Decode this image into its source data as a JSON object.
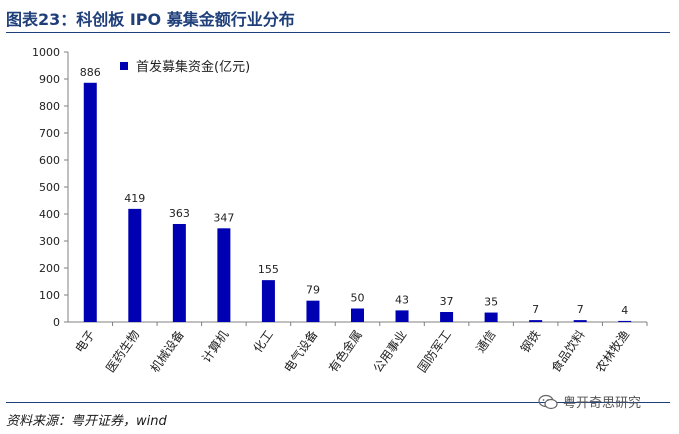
{
  "header": {
    "title": "图表23：科创板 IPO 募集金额行业分布"
  },
  "footer": {
    "source": "资料来源：粤开证券，wind",
    "watermark": "粤开奇思研究"
  },
  "chart_data": {
    "type": "bar",
    "title": "",
    "xlabel": "",
    "ylabel": "",
    "ylim": [
      0,
      1000
    ],
    "yticks": [
      0,
      100,
      200,
      300,
      400,
      500,
      600,
      700,
      800,
      900,
      1000
    ],
    "grid": false,
    "legend_position": "top-left",
    "categories": [
      "电子",
      "医药生物",
      "机械设备",
      "计算机",
      "化工",
      "电气设备",
      "有色金属",
      "公用事业",
      "国防军工",
      "通信",
      "钢铁",
      "食品饮料",
      "农林牧渔"
    ],
    "series": [
      {
        "name": "首发募集资金(亿元)",
        "values": [
          886,
          419,
          363,
          347,
          155,
          79,
          50,
          43,
          37,
          35,
          7,
          7,
          4
        ],
        "color": "#0000b3"
      }
    ]
  }
}
